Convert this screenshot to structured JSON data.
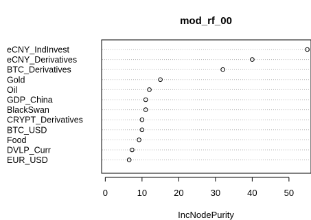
{
  "chart_data": {
    "type": "scatter",
    "title": "mod_rf_00",
    "xlabel": "IncNodePurity",
    "ylabel": "",
    "xlim": [
      -1,
      56
    ],
    "xticks": [
      0,
      10,
      20,
      30,
      40,
      50
    ],
    "grid": "dotted horizontal lines per category",
    "legend": "none",
    "marker": "open circle",
    "categories": [
      "eCNY_IndInvest",
      "eCNY_Derivatives",
      "BTC_Derivatives",
      "Gold",
      "Oil",
      "GDP_China",
      "BlackSwan",
      "CRYPT_Derivatives",
      "BTC_USD",
      "Food",
      "DVLP_Curr",
      "EUR_USD"
    ],
    "values": [
      55,
      40,
      32,
      15,
      12,
      11,
      11,
      10,
      10,
      9.2,
      7.3,
      6.5
    ],
    "colors": {
      "grid": "#b3b3b3",
      "axis": "#000000",
      "marker_stroke": "#000000"
    }
  }
}
